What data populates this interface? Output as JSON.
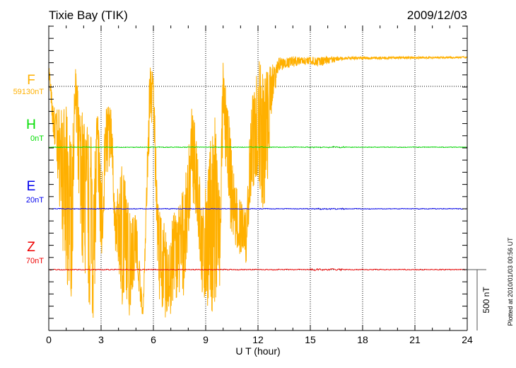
{
  "chart_data": {
    "type": "line",
    "title": "Tixie Bay (TIK)",
    "date": "2009/12/03",
    "xlabel": "U T (hour)",
    "xlim": [
      0,
      24
    ],
    "xticks": [
      "0",
      "3",
      "6",
      "9",
      "12",
      "15",
      "18",
      "21",
      "24"
    ],
    "scale_label": "500 nT",
    "plotted_note": "Plotted at 2010/01/03 00:56 UT",
    "series": [
      {
        "name": "F",
        "baseline": "59130nT",
        "color": "#ffb000",
        "envelope_hour_max_min_nT": [
          [
            0,
            215,
            70
          ],
          [
            0.25,
            -163,
            -400
          ],
          [
            0.5,
            -163,
            -744
          ],
          [
            1.0,
            -163,
            -1731
          ],
          [
            1.35,
            -500,
            -1731
          ],
          [
            1.5,
            244,
            -163
          ],
          [
            1.75,
            -163,
            -1034
          ],
          [
            2.0,
            -163,
            -1615
          ],
          [
            2.6,
            -500,
            -1964
          ],
          [
            2.8,
            -163,
            -700
          ],
          [
            3.0,
            -700,
            -1499
          ],
          [
            3.3,
            -163,
            -744
          ],
          [
            3.6,
            -163,
            -600
          ],
          [
            3.8,
            -1000,
            -1325
          ],
          [
            4.2,
            -569,
            -1789
          ],
          [
            4.6,
            -976,
            -1906
          ],
          [
            5.0,
            -1000,
            -1500
          ],
          [
            5.4,
            -1848,
            -1935
          ],
          [
            5.8,
            244,
            -337
          ],
          [
            6.0,
            100,
            -300
          ],
          [
            6.3,
            -976,
            -1731
          ],
          [
            6.8,
            -1200,
            -1964
          ],
          [
            7.2,
            -1034,
            -1789
          ],
          [
            7.8,
            -800,
            -1731
          ],
          [
            8.2,
            -163,
            -900
          ],
          [
            8.5,
            -400,
            -1100
          ],
          [
            8.8,
            -1034,
            -1731
          ],
          [
            9.5,
            -163,
            -1906
          ],
          [
            9.8,
            -900,
            -1700
          ],
          [
            10.0,
            244,
            -337
          ],
          [
            10.4,
            -337,
            -1208
          ],
          [
            10.7,
            -800,
            -1300
          ],
          [
            11.3,
            -1034,
            -1499
          ],
          [
            11.6,
            -163,
            -900
          ],
          [
            12.0,
            244,
            -744
          ],
          [
            12.4,
            128,
            -1208
          ],
          [
            12.8,
            186,
            -163
          ],
          [
            13.2,
            244,
            128
          ],
          [
            15.0,
            244,
            186
          ],
          [
            15.5,
            244,
            157
          ],
          [
            16.0,
            244,
            186
          ],
          [
            17.0,
            244,
            220
          ],
          [
            24,
            244,
            232
          ]
        ]
      },
      {
        "name": "H",
        "baseline": "0nT",
        "color": "#00dd00",
        "noise_nT": 6
      },
      {
        "name": "E",
        "baseline": "20nT",
        "color": "#0000ee",
        "noise_nT": 6
      },
      {
        "name": "Z",
        "baseline": "70nT",
        "color": "#ee0000",
        "noise_nT": 8
      }
    ]
  }
}
